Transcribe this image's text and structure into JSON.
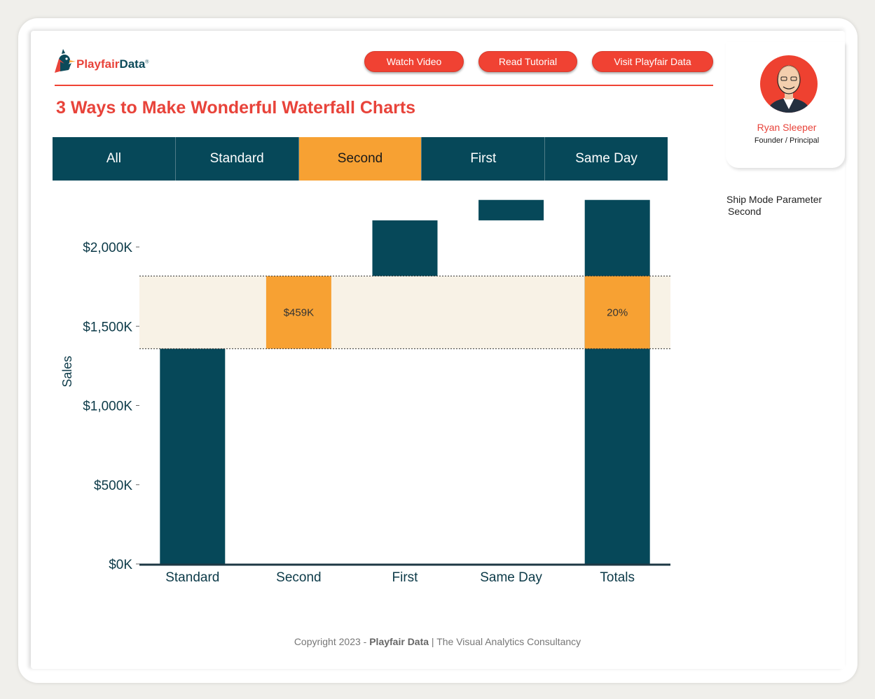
{
  "header": {
    "logo_text_a": "Playfair",
    "logo_text_b": "Data",
    "logo_mark": "®",
    "buttons": [
      {
        "label": "Watch Video"
      },
      {
        "label": "Read Tutorial"
      },
      {
        "label": "Visit Playfair Data"
      }
    ],
    "title": "3 Ways to Make Wonderful Waterfall Charts"
  },
  "tabs": [
    {
      "label": "All",
      "active": false
    },
    {
      "label": "Standard",
      "active": false
    },
    {
      "label": "Second",
      "active": true
    },
    {
      "label": "First",
      "active": false
    },
    {
      "label": "Same Day",
      "active": false
    }
  ],
  "profile": {
    "name": "Ryan Sleeper",
    "role": "Founder / Principal"
  },
  "parameter": {
    "label": "Ship Mode Parameter",
    "value": "Second"
  },
  "footer": {
    "prefix": "Copyright 2023 - ",
    "brand": "Playfair Data",
    "suffix": " | The Visual Analytics Consultancy"
  },
  "colors": {
    "bar": "#064859",
    "highlight": "#f7a133",
    "band": "#f8f2e6",
    "accent": "#f04233"
  },
  "chart_data": {
    "type": "bar",
    "subtype": "waterfall",
    "ylabel": "Sales",
    "xlabel": "",
    "ylim": [
      0,
      2300
    ],
    "yticks": [
      {
        "value": 0,
        "label": "$0K"
      },
      {
        "value": 500,
        "label": "$500K"
      },
      {
        "value": 1000,
        "label": "$1,000K"
      },
      {
        "value": 1500,
        "label": "$1,500K"
      },
      {
        "value": 2000,
        "label": "$2,000K"
      }
    ],
    "categories": [
      "Standard",
      "Second",
      "First",
      "Same Day",
      "Totals"
    ],
    "bars": [
      {
        "category": "Standard",
        "start": 0,
        "end": 1358,
        "highlight": false,
        "label": ""
      },
      {
        "category": "Second",
        "start": 1358,
        "end": 1817,
        "highlight": true,
        "label": "$459K"
      },
      {
        "category": "First",
        "start": 1817,
        "end": 2168,
        "highlight": false,
        "label": ""
      },
      {
        "category": "Same Day",
        "start": 2168,
        "end": 2297,
        "highlight": false,
        "label": ""
      },
      {
        "category": "Totals",
        "start": 0,
        "end": 2297,
        "highlight": false,
        "segment": [
          1358,
          1817
        ],
        "label": "20%"
      }
    ],
    "band": [
      1358,
      1817
    ]
  }
}
